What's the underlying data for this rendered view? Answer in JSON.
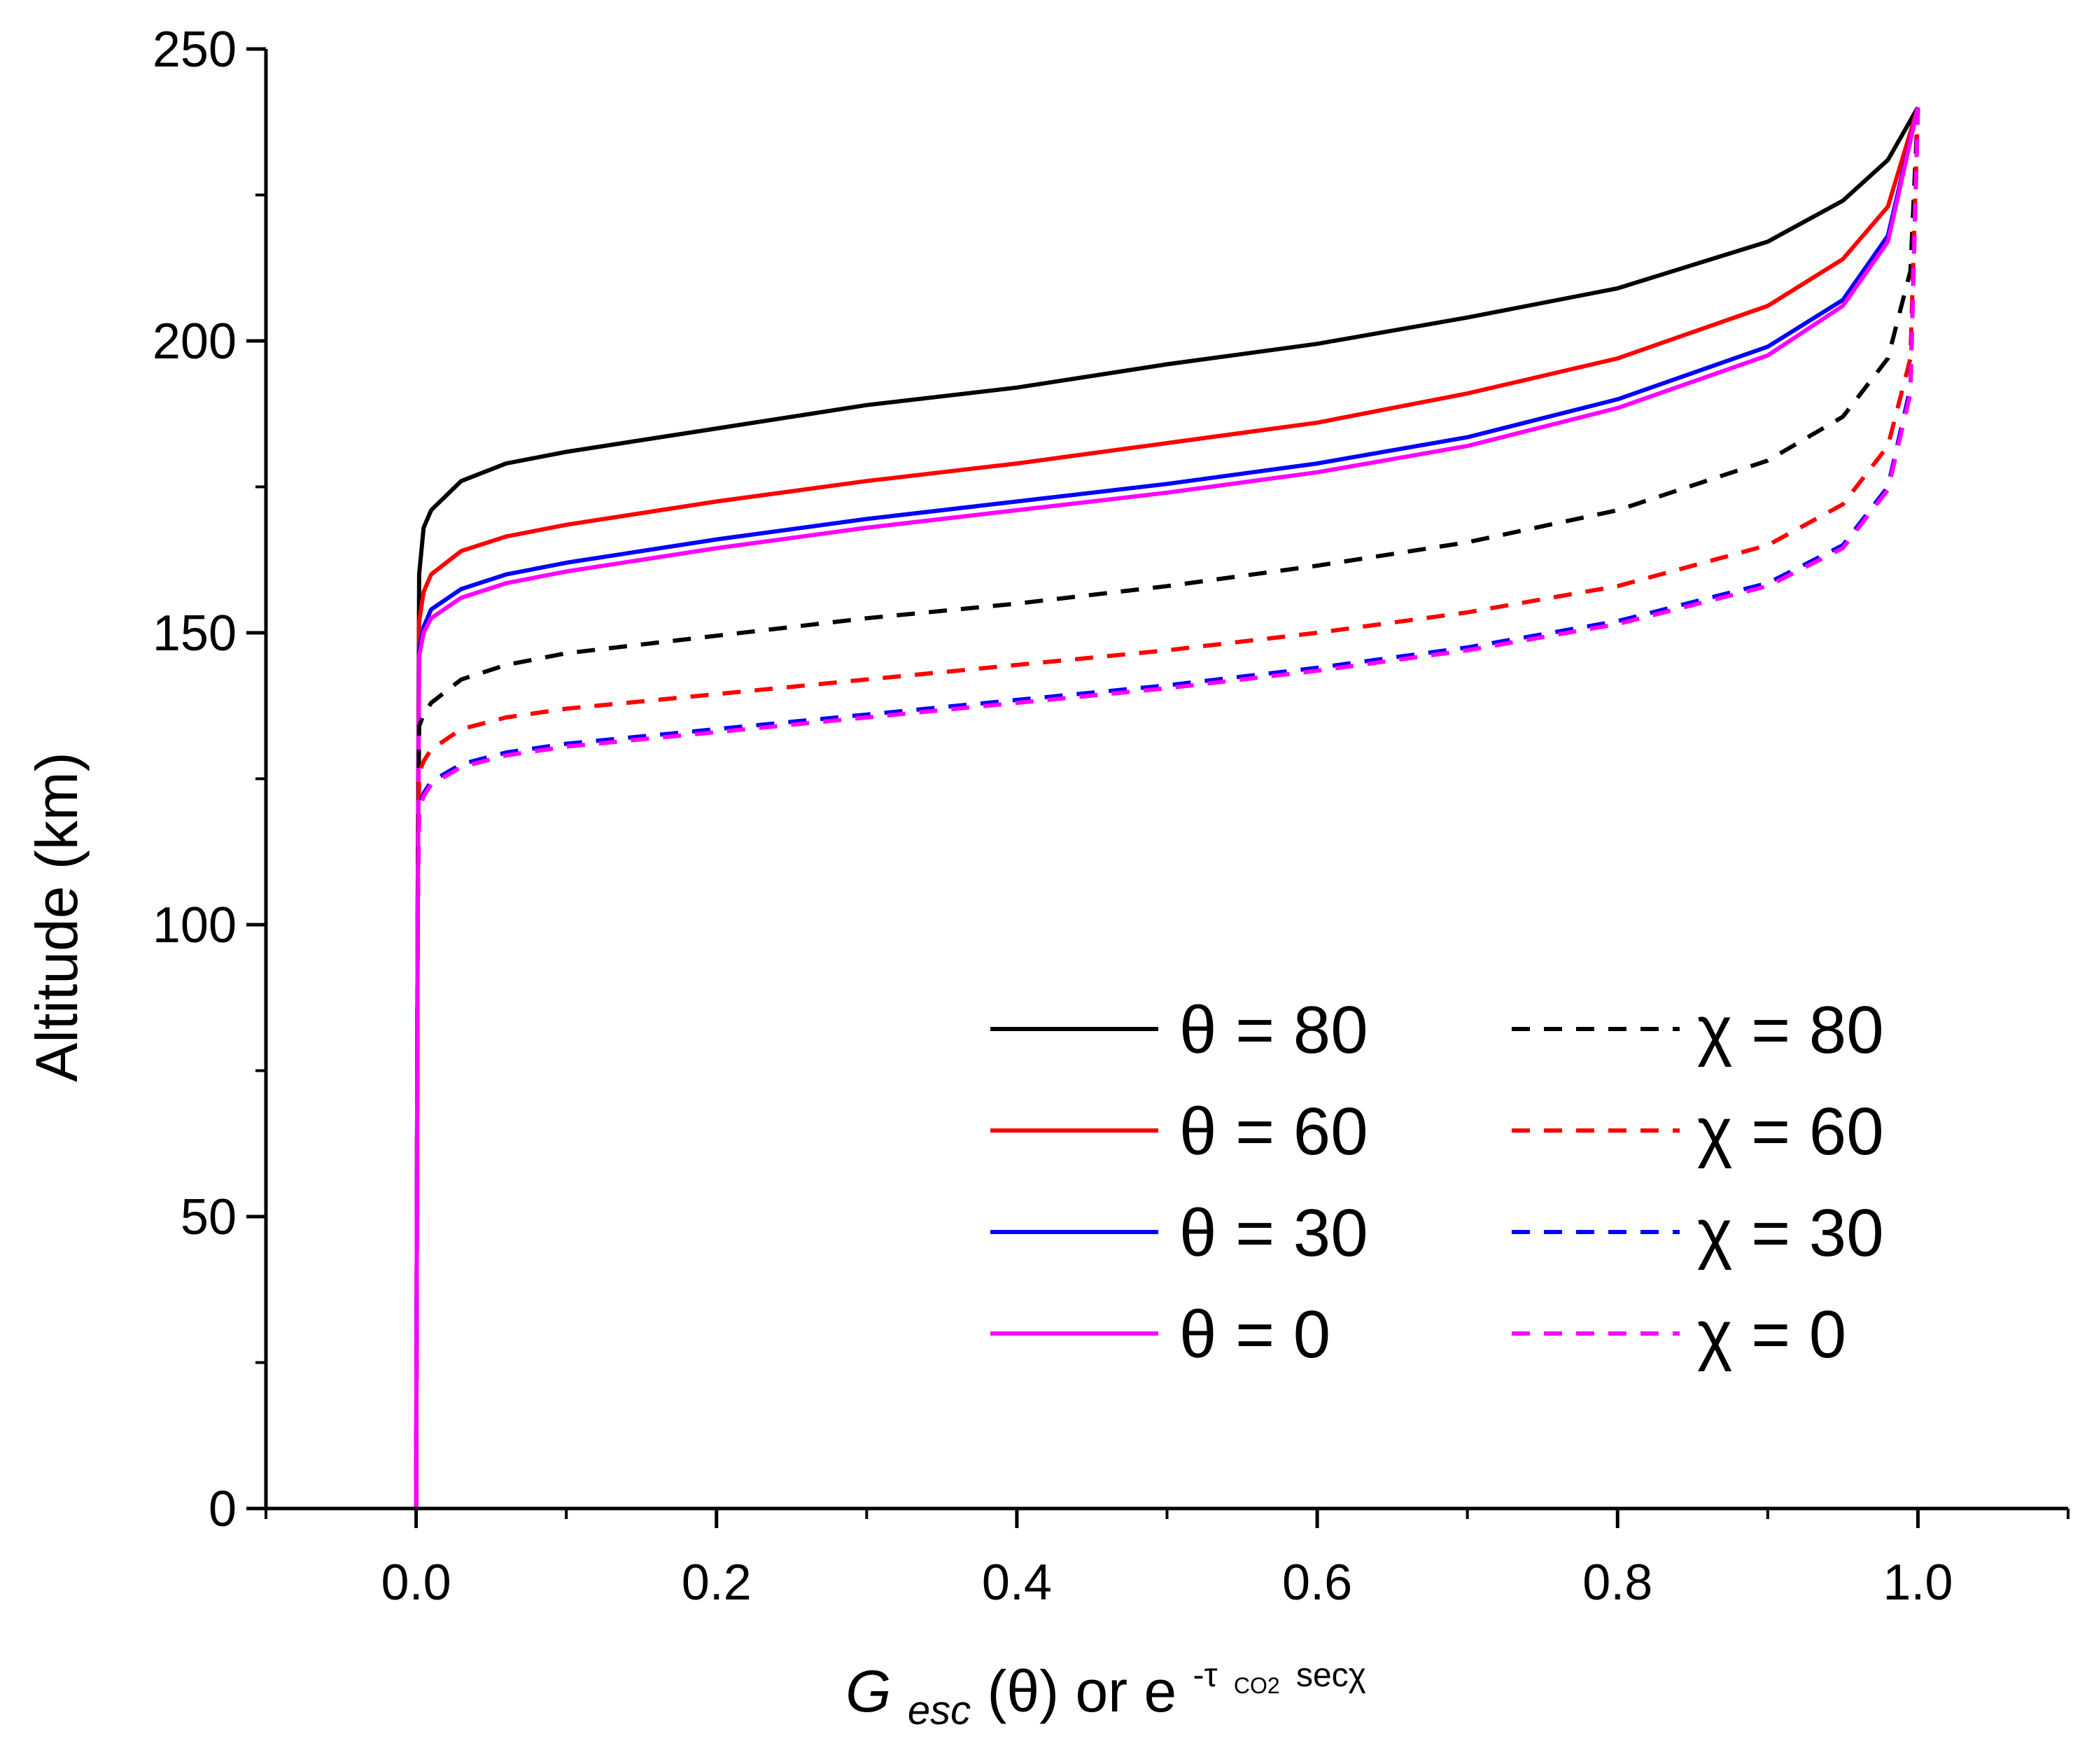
{
  "chart_data": {
    "type": "line",
    "title": "",
    "xlabel": {
      "main": "G",
      "main_sub": "esc",
      "arg": "(θ) or e",
      "exp_prefix": "-τ",
      "exp_sub": "CO2",
      "exp_suffix": "secχ"
    },
    "ylabel": "Altitude (km)",
    "xlim": [
      -0.1,
      1.1
    ],
    "ylim": [
      0,
      250
    ],
    "xticks": [
      0.0,
      0.2,
      0.4,
      0.6,
      0.8,
      1.0
    ],
    "xtick_labels": [
      "0.0",
      "0.2",
      "0.4",
      "0.6",
      "0.8",
      "1.0"
    ],
    "yticks": [
      0,
      50,
      100,
      150,
      200,
      250
    ],
    "ytick_labels": [
      "0",
      "50",
      "100",
      "150",
      "200",
      "250"
    ],
    "grid": false,
    "legend_position": "bottom-right",
    "series": [
      {
        "name": "θ = 80",
        "style": "solid",
        "color": "#000000",
        "x": [
          0,
          0.001,
          0.002,
          0.005,
          0.01,
          0.03,
          0.06,
          0.1,
          0.2,
          0.3,
          0.4,
          0.5,
          0.6,
          0.7,
          0.8,
          0.9,
          0.95,
          0.98,
          1.0
        ],
        "y": [
          0,
          100,
          160,
          168,
          171,
          176,
          179,
          181,
          185,
          189,
          192,
          196,
          199.5,
          204,
          209,
          217,
          224,
          231,
          240
        ]
      },
      {
        "name": "θ = 60",
        "style": "solid",
        "color": "#ff0000",
        "x": [
          0,
          0.001,
          0.002,
          0.005,
          0.01,
          0.03,
          0.06,
          0.1,
          0.2,
          0.3,
          0.4,
          0.5,
          0.6,
          0.7,
          0.8,
          0.9,
          0.95,
          0.98,
          1.0
        ],
        "y": [
          0,
          100,
          152,
          157,
          160,
          164,
          166.5,
          168.5,
          172.5,
          176,
          179,
          182.5,
          186,
          191,
          197,
          206,
          214,
          223,
          240
        ]
      },
      {
        "name": "θ = 30",
        "style": "solid",
        "color": "#0000ff",
        "x": [
          0,
          0.001,
          0.002,
          0.005,
          0.01,
          0.03,
          0.06,
          0.1,
          0.2,
          0.3,
          0.4,
          0.5,
          0.6,
          0.7,
          0.8,
          0.9,
          0.95,
          0.98,
          1.0
        ],
        "y": [
          0,
          100,
          147,
          151,
          154,
          157.5,
          160,
          162,
          166,
          169.5,
          172.5,
          175.5,
          179,
          183.5,
          190,
          199,
          207,
          218,
          240
        ]
      },
      {
        "name": "θ = 0",
        "style": "solid",
        "color": "#ff00ff",
        "x": [
          0,
          0.001,
          0.002,
          0.005,
          0.01,
          0.03,
          0.06,
          0.1,
          0.2,
          0.3,
          0.4,
          0.5,
          0.6,
          0.7,
          0.8,
          0.9,
          0.95,
          0.98,
          1.0
        ],
        "y": [
          0,
          100,
          146,
          150,
          152.5,
          156,
          158.5,
          160.5,
          164.5,
          168,
          171,
          174,
          177.5,
          182,
          188.5,
          197.5,
          206,
          217,
          240
        ]
      },
      {
        "name": "χ = 80",
        "style": "dashed",
        "color": "#000000",
        "x": [
          0,
          0.001,
          0.002,
          0.005,
          0.01,
          0.03,
          0.06,
          0.1,
          0.2,
          0.3,
          0.4,
          0.5,
          0.6,
          0.7,
          0.8,
          0.9,
          0.95,
          0.98,
          0.995,
          1.0
        ],
        "y": [
          0,
          100,
          134,
          136,
          138,
          142,
          144.5,
          146.5,
          149.5,
          152.5,
          155,
          158,
          161.5,
          165.5,
          171,
          179.5,
          187,
          197,
          212,
          240
        ]
      },
      {
        "name": "χ = 60",
        "style": "dashed",
        "color": "#ff0000",
        "x": [
          0,
          0.001,
          0.002,
          0.005,
          0.01,
          0.03,
          0.06,
          0.1,
          0.2,
          0.3,
          0.4,
          0.5,
          0.6,
          0.7,
          0.8,
          0.9,
          0.95,
          0.98,
          0.995,
          1.0
        ],
        "y": [
          0,
          100,
          126,
          128,
          130,
          133.5,
          135.5,
          137,
          139.5,
          142,
          144.5,
          147,
          150,
          153.5,
          158,
          165,
          172,
          182,
          197,
          240
        ]
      },
      {
        "name": "χ = 30",
        "style": "dashed",
        "color": "#0000ff",
        "x": [
          0,
          0.001,
          0.002,
          0.005,
          0.01,
          0.03,
          0.06,
          0.1,
          0.2,
          0.3,
          0.4,
          0.5,
          0.6,
          0.7,
          0.8,
          0.9,
          0.95,
          0.98,
          0.995,
          1.0
        ],
        "y": [
          0,
          100,
          120,
          122.5,
          124.5,
          127.5,
          129.5,
          131,
          133.5,
          136,
          138.5,
          141,
          144,
          147.5,
          152,
          158.5,
          165,
          175,
          192,
          240
        ]
      },
      {
        "name": "χ = 0",
        "style": "dashed",
        "color": "#ff00ff",
        "x": [
          0,
          0.001,
          0.002,
          0.005,
          0.01,
          0.03,
          0.06,
          0.1,
          0.2,
          0.3,
          0.4,
          0.5,
          0.6,
          0.7,
          0.8,
          0.9,
          0.95,
          0.98,
          0.995,
          1.0
        ],
        "y": [
          0,
          100,
          119.5,
          122,
          124,
          127,
          129,
          130.5,
          133,
          135.5,
          138,
          140.5,
          143.5,
          147,
          151.5,
          158,
          164.5,
          174.5,
          191,
          240
        ]
      }
    ]
  }
}
